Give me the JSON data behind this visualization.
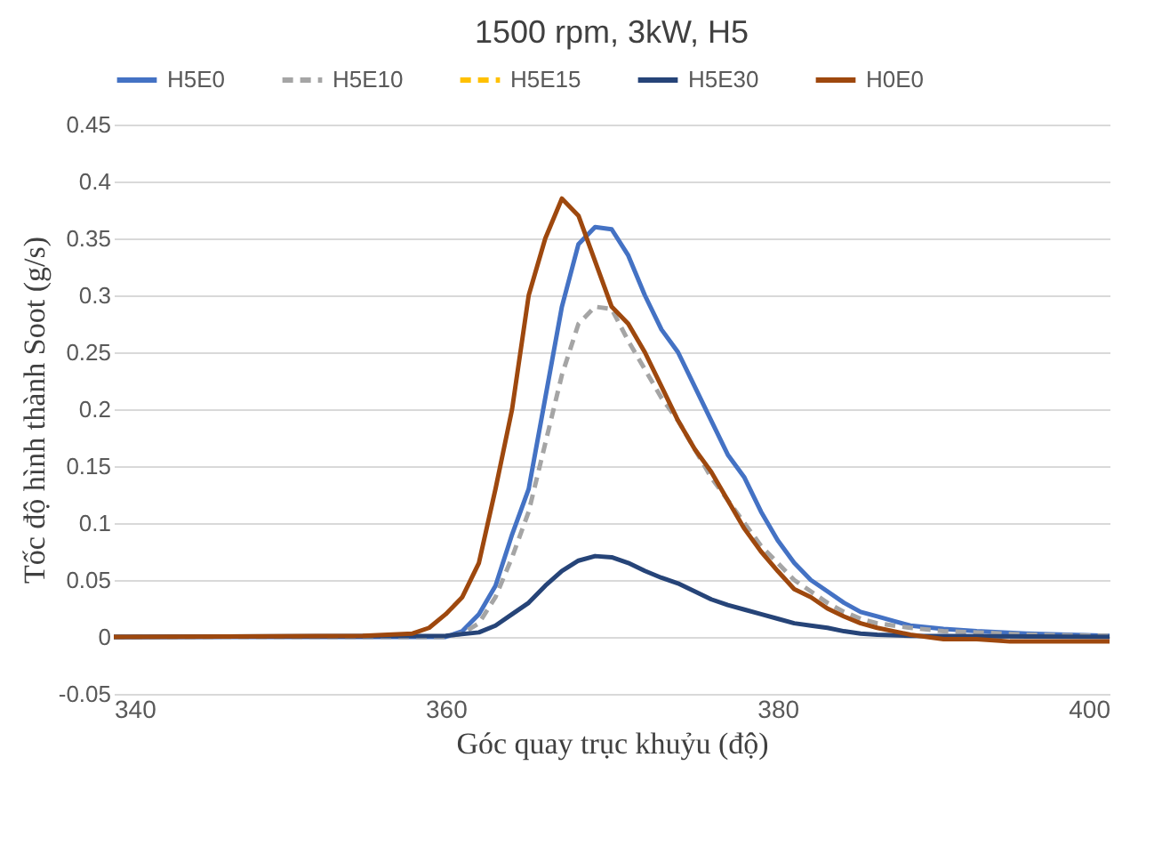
{
  "chart_data": {
    "type": "line",
    "title": "1500 rpm, 3kW, H5",
    "xlabel": "Góc quay trục khuỷu (độ)",
    "ylabel": "Tốc độ hình thành Soot (g/s)",
    "xlim": [
      340,
      400
    ],
    "xticks": [
      340,
      360,
      380,
      400
    ],
    "ylim": [
      -0.05,
      0.45
    ],
    "yticks": [
      -0.05,
      0,
      0.05,
      0.1,
      0.15,
      0.2,
      0.25,
      0.3,
      0.35,
      0.4,
      0.45
    ],
    "grid": "y",
    "legend": "top",
    "line_style": "solid",
    "series": [
      {
        "name": "H5E0",
        "color": "#4472c4",
        "x": [
          340,
          360,
          361,
          362,
          363,
          364,
          365,
          366,
          367,
          368,
          369,
          370,
          371,
          372,
          373,
          374,
          375,
          376,
          377,
          378,
          379,
          380,
          381,
          382,
          383,
          384,
          385,
          386,
          387,
          388,
          390,
          392,
          395,
          400
        ],
        "values": [
          0,
          0,
          0.005,
          0.02,
          0.045,
          0.09,
          0.13,
          0.21,
          0.29,
          0.345,
          0.36,
          0.358,
          0.335,
          0.3,
          0.27,
          0.25,
          0.22,
          0.19,
          0.16,
          0.14,
          0.11,
          0.085,
          0.065,
          0.05,
          0.04,
          0.03,
          0.022,
          0.018,
          0.014,
          0.01,
          0.007,
          0.005,
          0.003,
          0.001
        ]
      },
      {
        "name": "H5E10",
        "color": "#a5a5a5",
        "line_style": "dashed",
        "x": [
          340,
          360,
          361,
          362,
          363,
          364,
          365,
          366,
          367,
          368,
          369,
          370,
          371,
          372,
          373,
          374,
          375,
          376,
          377,
          378,
          379,
          380,
          381,
          382,
          383,
          384,
          385,
          386,
          388,
          390,
          392,
          395,
          400
        ],
        "values": [
          0,
          0,
          0.003,
          0.012,
          0.035,
          0.07,
          0.11,
          0.17,
          0.23,
          0.275,
          0.29,
          0.288,
          0.26,
          0.235,
          0.21,
          0.19,
          0.165,
          0.14,
          0.12,
          0.1,
          0.08,
          0.065,
          0.05,
          0.04,
          0.03,
          0.022,
          0.016,
          0.012,
          0.008,
          0.005,
          0.004,
          0.002,
          0.001
        ]
      },
      {
        "name": "H5E15",
        "color": "#ffc000",
        "line_style": "dashed"
      },
      {
        "name": "H5E30",
        "color": "#264478",
        "x": [
          340,
          360,
          362,
          363,
          364,
          365,
          366,
          367,
          368,
          369,
          370,
          371,
          372,
          373,
          374,
          375,
          376,
          377,
          378,
          379,
          380,
          381,
          382,
          383,
          384,
          385,
          386,
          388,
          400
        ],
        "values": [
          0,
          0.001,
          0.004,
          0.01,
          0.02,
          0.03,
          0.045,
          0.058,
          0.067,
          0.071,
          0.07,
          0.065,
          0.058,
          0.052,
          0.047,
          0.04,
          0.033,
          0.028,
          0.024,
          0.02,
          0.016,
          0.012,
          0.01,
          0.008,
          0.005,
          0.003,
          0.002,
          0.001,
          0
        ]
      },
      {
        "name": "H0E0",
        "color": "#9e480e",
        "x": [
          340,
          355,
          358,
          359,
          360,
          361,
          362,
          363,
          364,
          365,
          366,
          367,
          368,
          369,
          370,
          371,
          372,
          373,
          374,
          375,
          376,
          377,
          378,
          379,
          380,
          381,
          382,
          383,
          384,
          385,
          386,
          387,
          388,
          389,
          390,
          392,
          394,
          400
        ],
        "values": [
          0,
          0.001,
          0.003,
          0.008,
          0.02,
          0.035,
          0.065,
          0.13,
          0.2,
          0.3,
          0.35,
          0.385,
          0.37,
          0.33,
          0.29,
          0.275,
          0.25,
          0.22,
          0.19,
          0.165,
          0.145,
          0.12,
          0.095,
          0.075,
          0.058,
          0.042,
          0.035,
          0.025,
          0.018,
          0.012,
          0.008,
          0.005,
          0.002,
          0,
          -0.002,
          -0.002,
          -0.004,
          -0.004
        ]
      }
    ]
  }
}
